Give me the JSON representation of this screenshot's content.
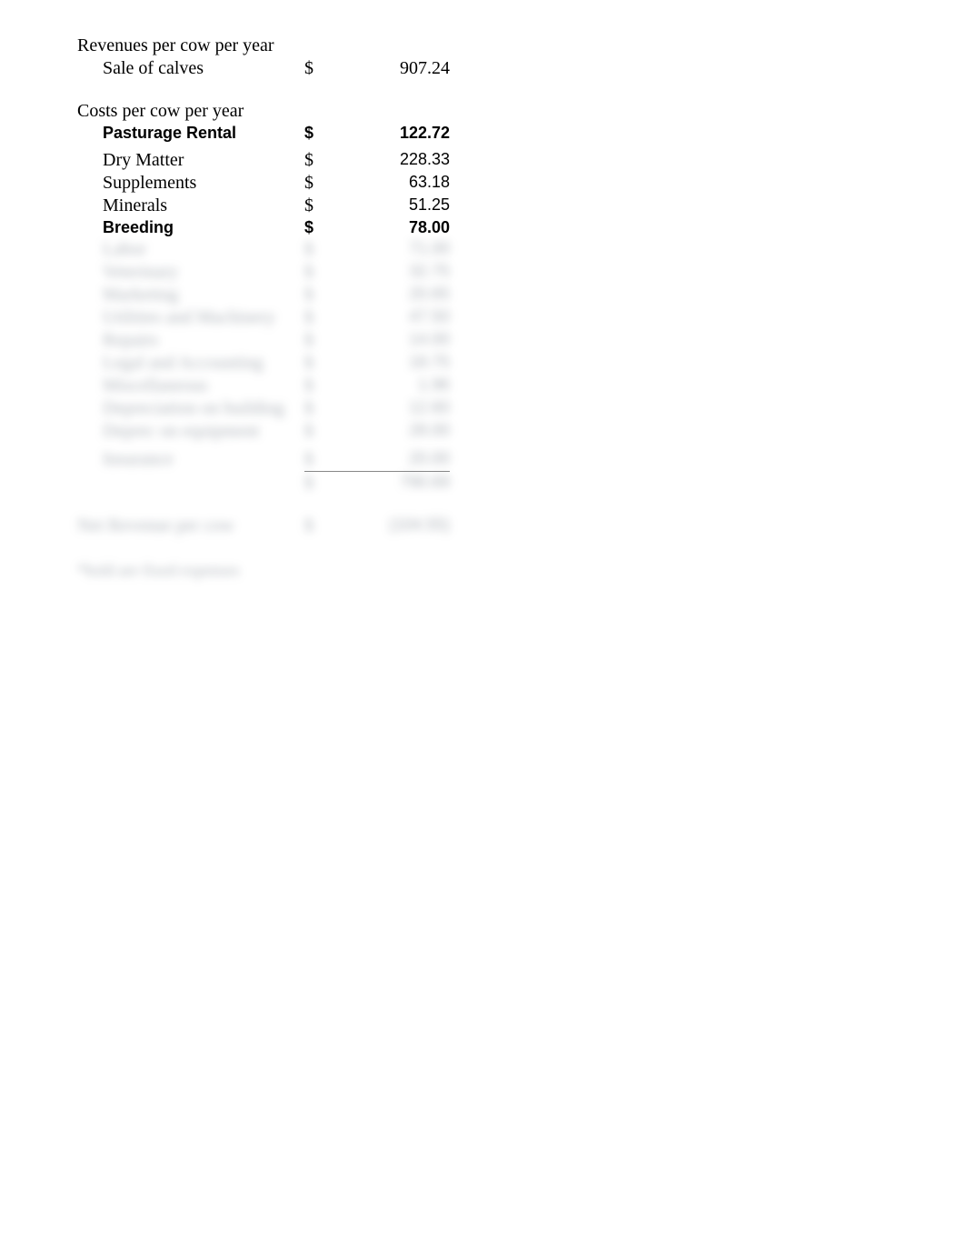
{
  "revenues": {
    "header": "Revenues per cow per year",
    "items": [
      {
        "label": "Sale of calves",
        "symbol": "$",
        "value": "907.24",
        "bold": false,
        "serif": true
      }
    ]
  },
  "costs": {
    "header": "Costs per cow per year",
    "items": [
      {
        "label": "Pasturage Rental",
        "symbol": "$",
        "value": "122.72",
        "bold": true
      },
      {
        "label": "Dry Matter",
        "symbol": "$",
        "value": "228.33",
        "bold": false
      },
      {
        "label": "Supplements",
        "symbol": "$",
        "value": "63.18",
        "bold": false
      },
      {
        "label": "Minerals",
        "symbol": "$",
        "value": "51.25",
        "bold": false
      },
      {
        "label": "Breeding",
        "symbol": "$",
        "value": "78.00",
        "bold": true
      }
    ]
  },
  "blurred_costs": {
    "items": [
      {
        "label": "Labor",
        "symbol": "$",
        "value": "71.00"
      },
      {
        "label": "Veterinary",
        "symbol": "$",
        "value": "32.75"
      },
      {
        "label": "Marketing",
        "symbol": "$",
        "value": "20.65"
      },
      {
        "label": "Utilities and Machinery",
        "symbol": "$",
        "value": "47.50"
      },
      {
        "label": "Repairs",
        "symbol": "$",
        "value": "14.00"
      },
      {
        "label": "Legal and Accounting",
        "symbol": "$",
        "value": "18.75"
      },
      {
        "label": "Miscellaneous",
        "symbol": "$",
        "value": "1.96"
      },
      {
        "label": "Depreciation on building",
        "symbol": "$",
        "value": "12.60"
      },
      {
        "label": "Deprec on equipment",
        "symbol": "$",
        "value": "28.00"
      }
    ]
  },
  "blurred_subtotal": {
    "items": [
      {
        "label": "Insurance",
        "symbol": "$",
        "value": "20.00"
      },
      {
        "label": "",
        "symbol": "$",
        "value": "790.69"
      }
    ]
  },
  "blurred_net": {
    "label": "Net Revenue per cow",
    "symbol": "$",
    "value": "(104.55)"
  },
  "footnote": "*bold are fixed expenses"
}
